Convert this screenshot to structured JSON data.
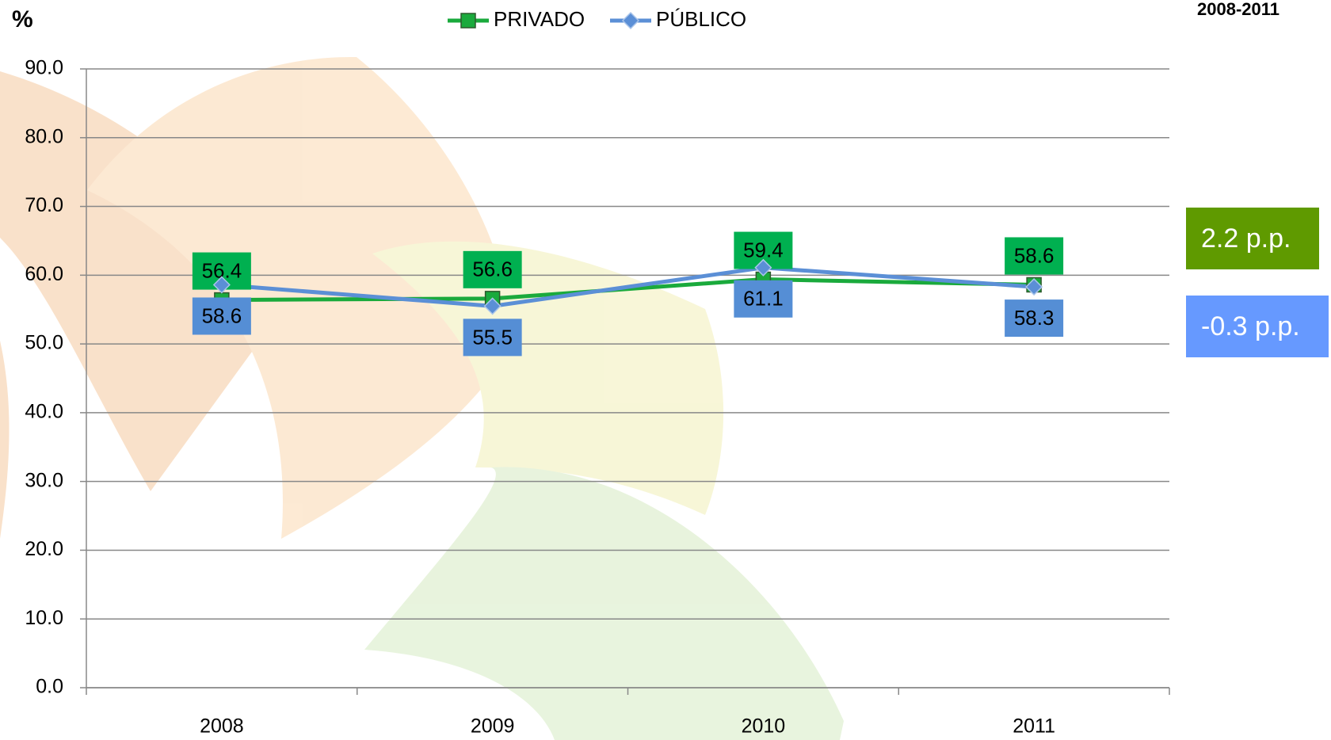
{
  "chart_data": {
    "type": "line",
    "subtitle": "2008-2011",
    "y_label": "%",
    "categories": [
      "2008",
      "2009",
      "2010",
      "2011"
    ],
    "series": [
      {
        "name": "PRIVADO",
        "color": "#1aaa3c",
        "label_color": "#00b050",
        "values": [
          56.4,
          56.6,
          59.4,
          58.6
        ]
      },
      {
        "name": "PÚBLICO",
        "color": "#5b8fd6",
        "label_color": "#558ed5",
        "values": [
          58.6,
          55.5,
          61.1,
          58.3
        ]
      }
    ],
    "ylim": [
      0,
      90
    ],
    "yticks": [
      {
        "value": 0,
        "label": "0.0"
      },
      {
        "value": 10,
        "label": "10.0"
      },
      {
        "value": 20,
        "label": "20.0"
      },
      {
        "value": 30,
        "label": "30.0"
      },
      {
        "value": 40,
        "label": "40.0"
      },
      {
        "value": 50,
        "label": "50.0"
      },
      {
        "value": 60,
        "label": "60.0"
      },
      {
        "value": 70,
        "label": "70.0"
      },
      {
        "value": 80,
        "label": "80.0"
      },
      {
        "value": 90,
        "label": "90.0"
      }
    ],
    "grid": true,
    "annotations": [
      {
        "text": "2.2 p.p.",
        "color": "#5f9a00"
      },
      {
        "text": "-0.3 p.p.",
        "color": "#6699ff"
      }
    ]
  }
}
